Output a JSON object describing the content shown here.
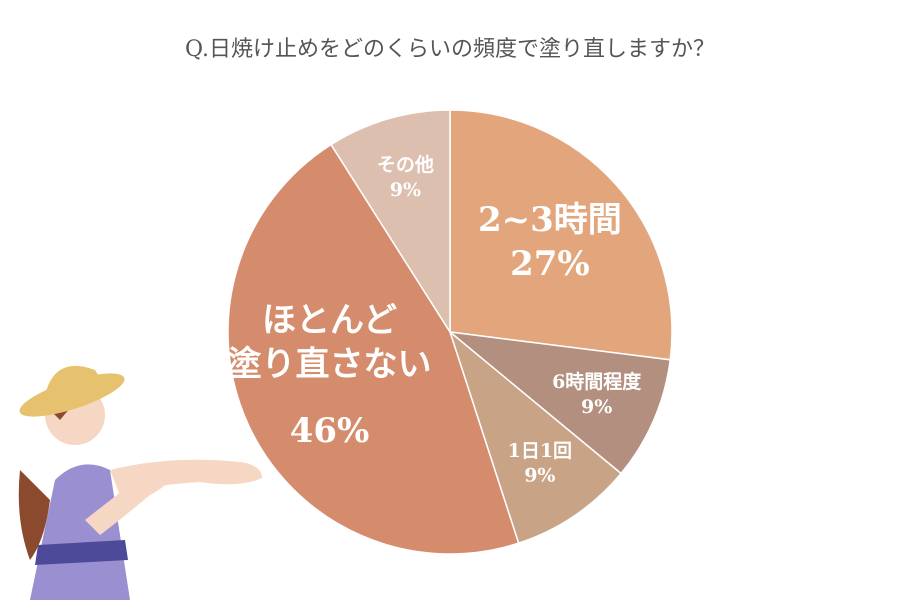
{
  "chart_data": {
    "type": "pie",
    "title": "Q.日焼け止めをどのくらいの頻度で塗り直しますか？",
    "categories": [
      "2~3時間",
      "6時間程度",
      "1日1回",
      "ほとんど\n塗り直さない",
      "その他"
    ],
    "values": [
      27,
      9,
      9,
      46,
      9
    ],
    "value_labels": [
      "27%",
      "9%",
      "9%",
      "46%",
      "9%"
    ],
    "colors": [
      "#E3A57C",
      "#B38F80",
      "#C9A386",
      "#D48C6C",
      "#DDBFAF"
    ]
  }
}
